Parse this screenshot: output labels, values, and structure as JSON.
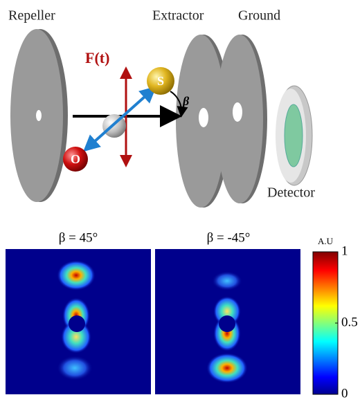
{
  "diagram": {
    "labels": {
      "repeller": "Repeller",
      "extractor": "Extractor",
      "ground": "Ground",
      "detector": "Detector",
      "field": "F(t)",
      "angle": "β",
      "sulfur": "S",
      "oxygen": "O"
    },
    "panels": [
      {
        "title": "β = 45°"
      },
      {
        "title": "β = -45°"
      }
    ],
    "colorbar": {
      "label": "A.U",
      "lim": [
        0,
        1
      ],
      "ticks": [
        0,
        0.5,
        1
      ]
    }
  }
}
